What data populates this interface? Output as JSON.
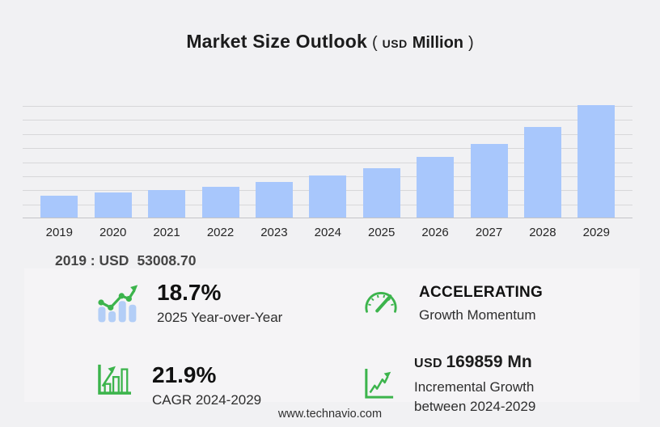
{
  "title": {
    "main": "Market Size Outlook",
    "open_paren": "(",
    "currency": "USD",
    "unit": "Million",
    "close_paren": ")"
  },
  "chart_data": {
    "type": "bar",
    "title": "Market Size Outlook (USD Million)",
    "unit": "USD Million",
    "categories": [
      "2019",
      "2020",
      "2021",
      "2022",
      "2023",
      "2024",
      "2025",
      "2026",
      "2027",
      "2028",
      "2029"
    ],
    "values": [
      53008.7,
      59500,
      65400,
      74600,
      86400,
      100568,
      119374,
      145900,
      177300,
      218500,
      270427
    ],
    "ylim": [
      0,
      306000
    ],
    "grid": true,
    "gridline_count": 8,
    "legend": false,
    "labeled_point": {
      "year": "2019",
      "value": "53008.70",
      "currency": "USD"
    }
  },
  "base_note": {
    "label": "2019 : USD",
    "value": "53008.70"
  },
  "stats": {
    "yoy": {
      "icon": "bar-trend-icon",
      "value": "18.7%",
      "label": "2025 Year-over-Year"
    },
    "momentum": {
      "icon": "speedometer-icon",
      "value": "ACCELERATING",
      "label": "Growth Momentum"
    },
    "cagr": {
      "icon": "growth-bars-icon",
      "value": "21.9%",
      "label": "CAGR 2024-2029"
    },
    "incremental": {
      "icon": "line-chart-icon",
      "prefix": "USD",
      "value": "169859 Mn",
      "label_line1": "Incremental Growth",
      "label_line2": "between 2024-2029"
    }
  },
  "footer": {
    "url": "www.technavio.com"
  },
  "colors": {
    "background": "#f1f1f3",
    "panel": "#f5f4f6",
    "bar_blue": "#a8c7fc",
    "icon_bar_blue": "#b3cef7",
    "accent_green": "#3cb44c",
    "gridline": "#d7d7d9",
    "axis": "#c4c4c8"
  }
}
